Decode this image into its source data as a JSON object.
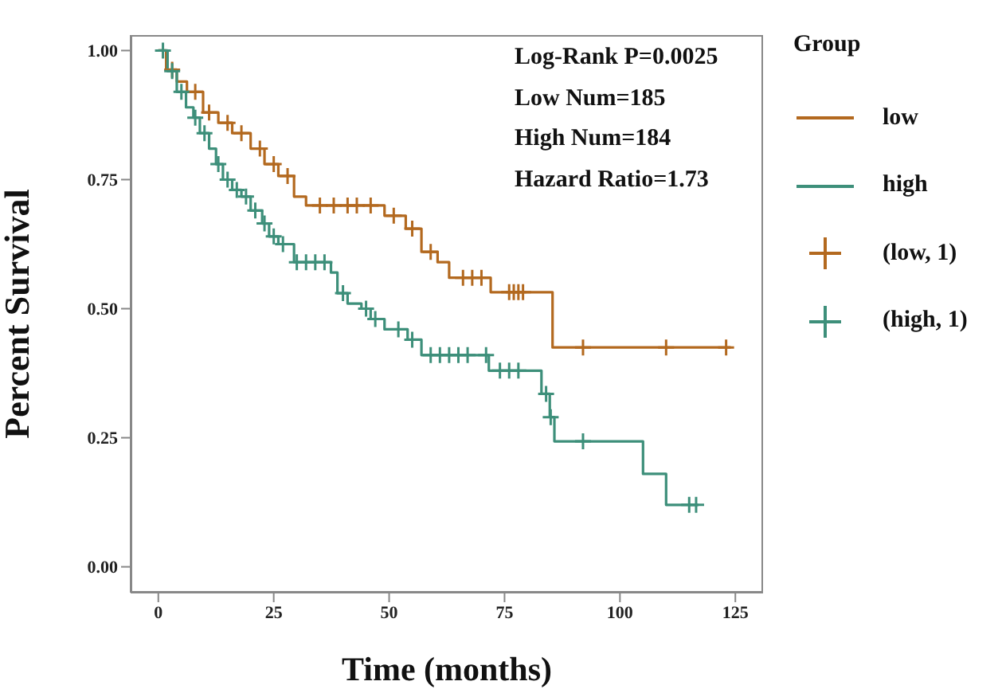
{
  "chart_data": {
    "type": "step",
    "xlabel": "Time (months)",
    "ylabel": "Percent Survival",
    "legend_title": "Group",
    "legend": "right",
    "grid": false,
    "xlim": [
      -6,
      131
    ],
    "xticks": [
      0,
      25,
      50,
      75,
      100,
      125
    ],
    "ylim": [
      -0.05,
      1.03
    ],
    "yticks": [
      {
        "value": 0,
        "label": "0.00"
      },
      {
        "value": 0.25,
        "label": "0.25"
      },
      {
        "value": 0.5,
        "label": "0.50"
      },
      {
        "value": 0.75,
        "label": "0.75"
      },
      {
        "value": 1,
        "label": "1.00"
      }
    ],
    "annotations": [
      "Log-Rank P=0.0025",
      "Low Num=185",
      "High Num=184",
      "Hazard Ratio=1.73"
    ],
    "series": [
      {
        "name": "low",
        "color": "#b3691f",
        "x": [
          0,
          1.7,
          4,
          6.2,
          9.7,
          13,
          16,
          20,
          23,
          26,
          29.4,
          32,
          49,
          53.6,
          57,
          60.5,
          63,
          72,
          85.4,
          124
        ],
        "values": [
          1,
          0.963,
          0.94,
          0.92,
          0.88,
          0.86,
          0.84,
          0.81,
          0.78,
          0.757,
          0.717,
          0.7,
          0.68,
          0.655,
          0.61,
          0.59,
          0.56,
          0.532,
          0.425,
          0.425
        ]
      },
      {
        "name": "high",
        "color": "#3d8f7a",
        "x": [
          0,
          2,
          4,
          6,
          7.6,
          9,
          11,
          12.5,
          14,
          16,
          18,
          20,
          22.5,
          24,
          26,
          29.4,
          37.4,
          38.8,
          41,
          44,
          46,
          49,
          54,
          57,
          71.6,
          83,
          84.8,
          85.8,
          105,
          110,
          117
        ],
        "values": [
          1,
          0.96,
          0.92,
          0.89,
          0.87,
          0.84,
          0.81,
          0.78,
          0.75,
          0.73,
          0.717,
          0.69,
          0.665,
          0.64,
          0.625,
          0.59,
          0.57,
          0.53,
          0.51,
          0.5,
          0.48,
          0.46,
          0.44,
          0.41,
          0.38,
          0.335,
          0.29,
          0.243,
          0.18,
          0.12,
          0.12
        ]
      },
      {
        "name": "(low, 1)",
        "type": "scatter",
        "marker": "cross",
        "color": "#b3691f",
        "x": [
          3,
          8,
          11,
          15,
          18,
          22,
          25,
          28,
          35,
          38,
          41,
          43,
          46,
          51,
          55,
          59,
          66,
          68,
          70,
          76,
          77,
          78,
          79,
          92,
          110,
          123
        ],
        "values": [
          0.963,
          0.92,
          0.88,
          0.86,
          0.84,
          0.81,
          0.78,
          0.757,
          0.7,
          0.7,
          0.7,
          0.7,
          0.7,
          0.68,
          0.655,
          0.61,
          0.56,
          0.56,
          0.56,
          0.532,
          0.532,
          0.532,
          0.532,
          0.425,
          0.425,
          0.425
        ]
      },
      {
        "name": "(high, 1)",
        "type": "scatter",
        "marker": "cross",
        "color": "#3d8f7a",
        "x": [
          1,
          3,
          5,
          8,
          10,
          13,
          15,
          17,
          19,
          21,
          23,
          25,
          27,
          30,
          32,
          34,
          36,
          40,
          45,
          47,
          52,
          55,
          59,
          61,
          63,
          65,
          67,
          71,
          74,
          76,
          78,
          84,
          85,
          92,
          115,
          116.5
        ],
        "values": [
          1,
          0.96,
          0.92,
          0.87,
          0.84,
          0.78,
          0.75,
          0.73,
          0.717,
          0.69,
          0.665,
          0.64,
          0.625,
          0.59,
          0.59,
          0.59,
          0.59,
          0.53,
          0.5,
          0.48,
          0.46,
          0.44,
          0.41,
          0.41,
          0.41,
          0.41,
          0.41,
          0.41,
          0.38,
          0.38,
          0.38,
          0.335,
          0.29,
          0.243,
          0.12,
          0.12
        ]
      }
    ]
  }
}
